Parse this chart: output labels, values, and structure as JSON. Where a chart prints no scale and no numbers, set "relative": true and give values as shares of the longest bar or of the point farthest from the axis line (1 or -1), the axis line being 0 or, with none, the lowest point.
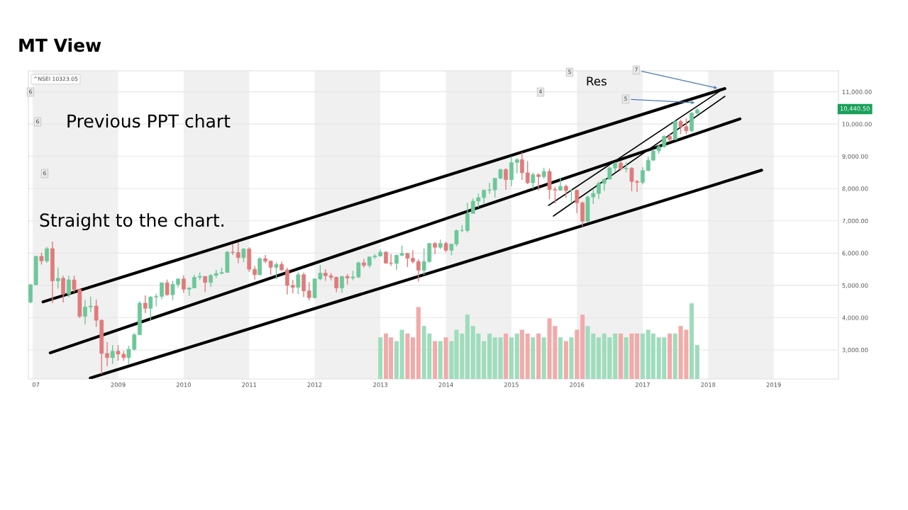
{
  "chart_data": [
    {
      "type": "candlestick",
      "title": "MT View",
      "x": [
        "2007-09",
        "2007-10",
        "2007-11",
        "2007-12",
        "2008-01",
        "2008-02",
        "2008-03",
        "2008-04",
        "2008-05",
        "2008-06",
        "2008-07",
        "2008-08",
        "2008-09",
        "2008-10",
        "2008-11",
        "2008-12",
        "2009-01",
        "2009-02",
        "2009-03",
        "2009-04",
        "2009-05",
        "2009-06",
        "2009-07",
        "2009-08",
        "2009-09",
        "2009-10",
        "2009-11",
        "2009-12",
        "2010-01",
        "2010-02",
        "2010-03",
        "2010-04",
        "2010-05",
        "2010-06",
        "2010-07",
        "2010-08",
        "2010-09",
        "2010-10",
        "2010-11",
        "2010-12",
        "2011-01",
        "2011-02",
        "2011-03",
        "2011-04",
        "2011-05",
        "2011-06",
        "2011-07",
        "2011-08",
        "2011-09",
        "2011-10",
        "2011-11",
        "2011-12",
        "2012-01",
        "2012-02",
        "2012-03",
        "2012-04",
        "2012-05",
        "2012-06",
        "2012-07",
        "2012-08",
        "2012-09",
        "2012-10",
        "2012-11",
        "2012-12",
        "2013-01",
        "2013-02",
        "2013-03",
        "2013-04",
        "2013-05",
        "2013-06",
        "2013-07",
        "2013-08",
        "2013-09",
        "2013-10",
        "2013-11",
        "2013-12",
        "2014-01",
        "2014-02",
        "2014-03",
        "2014-04",
        "2014-05",
        "2014-06",
        "2014-07",
        "2014-08",
        "2014-09",
        "2014-10",
        "2014-11",
        "2014-12",
        "2015-01",
        "2015-02",
        "2015-03",
        "2015-04",
        "2015-05",
        "2015-06",
        "2015-07",
        "2015-08",
        "2015-09",
        "2015-10",
        "2015-11",
        "2015-12",
        "2016-01",
        "2016-02",
        "2016-03",
        "2016-04",
        "2016-05",
        "2016-06",
        "2016-07",
        "2016-08",
        "2016-09",
        "2016-10",
        "2016-11",
        "2016-12",
        "2017-01",
        "2017-02",
        "2017-03",
        "2017-04",
        "2017-05",
        "2017-06",
        "2017-07",
        "2017-08",
        "2017-09",
        "2017-10",
        "2017-11"
      ],
      "ohlc": [
        [
          4480,
          5050,
          4450,
          5020
        ],
        [
          5020,
          5920,
          5000,
          5900
        ],
        [
          5900,
          6010,
          5640,
          5760
        ],
        [
          5760,
          6190,
          5700,
          6140
        ],
        [
          6140,
          6360,
          4450,
          5140
        ],
        [
          5140,
          5550,
          4900,
          5220
        ],
        [
          5220,
          5300,
          4470,
          4730
        ],
        [
          4730,
          5300,
          4630,
          5170
        ],
        [
          5170,
          5300,
          4780,
          4870
        ],
        [
          4870,
          4900,
          3990,
          4040
        ],
        [
          4040,
          4540,
          3790,
          4330
        ],
        [
          4330,
          4650,
          4170,
          4360
        ],
        [
          4360,
          4560,
          3710,
          3920
        ],
        [
          3920,
          3950,
          2250,
          2890
        ],
        [
          2890,
          3240,
          2500,
          2760
        ],
        [
          2760,
          3150,
          2570,
          2960
        ],
        [
          2960,
          3150,
          2660,
          2870
        ],
        [
          2870,
          2970,
          2660,
          2760
        ],
        [
          2760,
          3130,
          2540,
          3020
        ],
        [
          3020,
          3520,
          2970,
          3470
        ],
        [
          3470,
          4510,
          3470,
          4450
        ],
        [
          4450,
          4690,
          4140,
          4290
        ],
        [
          4290,
          4670,
          3920,
          4640
        ],
        [
          4640,
          4740,
          4350,
          4660
        ],
        [
          4660,
          5090,
          4570,
          5080
        ],
        [
          5080,
          5180,
          4680,
          4710
        ],
        [
          4710,
          5140,
          4540,
          5030
        ],
        [
          5030,
          5220,
          4940,
          5200
        ],
        [
          5200,
          5310,
          4770,
          4880
        ],
        [
          4880,
          4940,
          4680,
          4920
        ],
        [
          4920,
          5330,
          4920,
          5250
        ],
        [
          5250,
          5400,
          5160,
          5280
        ],
        [
          5280,
          5280,
          4790,
          5090
        ],
        [
          5090,
          5350,
          4960,
          5310
        ],
        [
          5310,
          5480,
          5230,
          5370
        ],
        [
          5370,
          5550,
          5350,
          5400
        ],
        [
          5400,
          6070,
          5400,
          6030
        ],
        [
          6030,
          6280,
          5940,
          6020
        ],
        [
          6020,
          6340,
          5690,
          5860
        ],
        [
          5860,
          6150,
          5720,
          6130
        ],
        [
          6130,
          6180,
          5420,
          5500
        ],
        [
          5500,
          5600,
          5180,
          5330
        ],
        [
          5330,
          5870,
          5310,
          5830
        ],
        [
          5830,
          5940,
          5690,
          5750
        ],
        [
          5750,
          5780,
          5330,
          5560
        ],
        [
          5560,
          5710,
          5200,
          5650
        ],
        [
          5650,
          5740,
          5450,
          5480
        ],
        [
          5480,
          5550,
          4720,
          5000
        ],
        [
          5000,
          5170,
          4760,
          4940
        ],
        [
          4940,
          5400,
          4730,
          5330
        ],
        [
          5330,
          5400,
          4640,
          4830
        ],
        [
          4830,
          5100,
          4530,
          4620
        ],
        [
          4620,
          5220,
          4590,
          5200
        ],
        [
          5200,
          5630,
          5160,
          5380
        ],
        [
          5380,
          5500,
          5140,
          5300
        ],
        [
          5300,
          5380,
          5150,
          5250
        ],
        [
          5250,
          5280,
          4790,
          4920
        ],
        [
          4920,
          5290,
          4770,
          5280
        ],
        [
          5280,
          5350,
          5030,
          5230
        ],
        [
          5230,
          5450,
          5160,
          5260
        ],
        [
          5260,
          5740,
          5220,
          5700
        ],
        [
          5700,
          5820,
          5550,
          5620
        ],
        [
          5620,
          5890,
          5550,
          5880
        ],
        [
          5880,
          5970,
          5820,
          5910
        ],
        [
          5910,
          6110,
          5890,
          6030
        ],
        [
          6030,
          6060,
          5670,
          5690
        ],
        [
          5690,
          5970,
          5600,
          5680
        ],
        [
          5680,
          5960,
          5480,
          5930
        ],
        [
          5930,
          6230,
          5910,
          5990
        ],
        [
          5990,
          6010,
          5570,
          5840
        ],
        [
          5840,
          6090,
          5680,
          5740
        ],
        [
          5740,
          5810,
          5120,
          5470
        ],
        [
          5470,
          6140,
          5320,
          5740
        ],
        [
          5740,
          6310,
          5700,
          6300
        ],
        [
          6300,
          6340,
          5970,
          6180
        ],
        [
          6180,
          6420,
          6130,
          6300
        ],
        [
          6300,
          6360,
          6030,
          6090
        ],
        [
          6090,
          6280,
          5930,
          6280
        ],
        [
          6280,
          6730,
          6210,
          6700
        ],
        [
          6700,
          6870,
          6650,
          6700
        ],
        [
          6700,
          7560,
          6640,
          7230
        ],
        [
          7230,
          7700,
          7220,
          7610
        ],
        [
          7610,
          7840,
          7420,
          7720
        ],
        [
          7720,
          7970,
          7540,
          7950
        ],
        [
          7950,
          8180,
          7840,
          7960
        ],
        [
          7960,
          8330,
          7720,
          8320
        ],
        [
          8320,
          8620,
          8290,
          8590
        ],
        [
          8590,
          8630,
          7960,
          8280
        ],
        [
          8280,
          8990,
          8070,
          8810
        ],
        [
          8810,
          8940,
          8470,
          8900
        ],
        [
          8900,
          9120,
          8270,
          8490
        ],
        [
          8490,
          8850,
          8140,
          8180
        ],
        [
          8180,
          8490,
          7990,
          8430
        ],
        [
          8430,
          8470,
          7940,
          8370
        ],
        [
          8370,
          8650,
          8310,
          8530
        ],
        [
          8530,
          8620,
          7670,
          7970
        ],
        [
          7970,
          8060,
          7540,
          7950
        ],
        [
          7950,
          8340,
          7930,
          8070
        ],
        [
          8070,
          8120,
          7710,
          7940
        ],
        [
          7940,
          8000,
          7550,
          7950
        ],
        [
          7950,
          7970,
          7240,
          7560
        ],
        [
          7560,
          7600,
          6830,
          6990
        ],
        [
          6990,
          7780,
          6950,
          7740
        ],
        [
          7740,
          7990,
          7520,
          7850
        ],
        [
          7850,
          8220,
          7680,
          8160
        ],
        [
          8160,
          8310,
          7930,
          8290
        ],
        [
          8290,
          8680,
          8290,
          8640
        ],
        [
          8640,
          8820,
          8520,
          8790
        ],
        [
          8790,
          8870,
          8560,
          8610
        ],
        [
          8610,
          8810,
          8510,
          8630
        ],
        [
          8630,
          8670,
          7920,
          8220
        ],
        [
          8220,
          8270,
          7890,
          8190
        ],
        [
          8190,
          8670,
          8130,
          8560
        ],
        [
          8560,
          8980,
          8540,
          8880
        ],
        [
          8880,
          9220,
          8860,
          9170
        ],
        [
          9170,
          9370,
          9080,
          9300
        ],
        [
          9300,
          9650,
          9270,
          9620
        ],
        [
          9620,
          9710,
          9450,
          9520
        ],
        [
          9520,
          10110,
          9500,
          10080
        ],
        [
          10080,
          10140,
          9690,
          9920
        ],
        [
          9920,
          10180,
          9690,
          9790
        ],
        [
          9790,
          10370,
          9750,
          10340
        ],
        [
          10340,
          10490,
          10300,
          10440
        ]
      ],
      "series": [
        {
          "type": "line",
          "color": "#000000",
          "x": [
            "2007-11-10",
            "2018-04-04"
          ],
          "values": [
            4490,
            11100
          ]
        },
        {
          "type": "line",
          "color": "#000000",
          "x": [
            "2007-12-20",
            "2018-06-27"
          ],
          "values": [
            2910,
            10160
          ]
        },
        {
          "type": "line",
          "color": "#000000",
          "x": [
            "2008-07-30",
            "2018-10-26"
          ],
          "values": [
            2130,
            8570
          ]
        },
        {
          "type": "line",
          "color": "#000000",
          "x": [
            "2015-07-27",
            "2018-03-04"
          ],
          "values": [
            7480,
            11010
          ]
        },
        {
          "type": "line",
          "color": "#000000",
          "x": [
            "2015-08-23",
            "2018-04-04"
          ],
          "values": [
            7150,
            10860
          ]
        }
      ],
      "bands": [
        {
          "axis": "x",
          "from": "2007-09-13",
          "to": "2009-01-01",
          "color": "#f0f0f0"
        },
        {
          "axis": "x",
          "from": "2010-01-01",
          "to": "2011-01-01",
          "color": "#f0f0f0"
        },
        {
          "axis": "x",
          "from": "2012-01-01",
          "to": "2013-01-01",
          "color": "#f0f0f0"
        },
        {
          "axis": "x",
          "from": "2014-01-01",
          "to": "2015-01-01",
          "color": "#f0f0f0"
        },
        {
          "axis": "x",
          "from": "2016-01-01",
          "to": "2017-01-01",
          "color": "#f0f0f0"
        },
        {
          "axis": "x",
          "from": "2018-01-01",
          "to": "2019-01-01",
          "color": "#f0f0f0"
        }
      ],
      "xlim": [
        "2007-08-20",
        "2019-12-28"
      ],
      "xticks": [
        {
          "value": "2007-10-01",
          "label": "07"
        },
        {
          "value": "2009-01-01",
          "label": "2009"
        },
        {
          "value": "2010-01-01",
          "label": "2010"
        },
        {
          "value": "2011-01-01",
          "label": "2011"
        },
        {
          "value": "2012-01-01",
          "label": "2012"
        },
        {
          "value": "2013-01-01",
          "label": "2013"
        },
        {
          "value": "2014-01-01",
          "label": "2014"
        },
        {
          "value": "2015-01-01",
          "label": "2015"
        },
        {
          "value": "2016-01-01",
          "label": "2016"
        },
        {
          "value": "2017-01-01",
          "label": "2017"
        },
        {
          "value": "2018-01-01",
          "label": "2018"
        },
        {
          "value": "2019-01-01",
          "label": "2019"
        }
      ],
      "ylim": [
        2100,
        11650
      ],
      "yticks": [
        {
          "value": 3000,
          "label": "3,000.00"
        },
        {
          "value": 4000,
          "label": "4,000.00"
        },
        {
          "value": 5000,
          "label": "5,000.00"
        },
        {
          "value": 6000,
          "label": "6,000.00"
        },
        {
          "value": 7000,
          "label": "7,000.00"
        },
        {
          "value": 8000,
          "label": "8,000.00"
        },
        {
          "value": 9000,
          "label": "9,000.00"
        },
        {
          "value": 10000,
          "label": "10,000.00"
        },
        {
          "value": 11000,
          "label": "11,000.00"
        }
      ],
      "grid": "y",
      "annotations": [
        "^NSEI 10323.05",
        "Previous PPT chart",
        "Straight to the chart.",
        "Res",
        "6",
        "6",
        "6",
        "5",
        "4",
        {
          "text": "7",
          "x": "2018-03-04",
          "y": 11100
        },
        {
          "text": "5",
          "x": "2017-10-29",
          "y": 10660
        },
        "10,440.50"
      ]
    },
    {
      "type": "bar",
      "relative": true,
      "xlim": [
        "2007-08-20",
        "2019-12-28"
      ],
      "x": [
        "2013-01",
        "2013-02",
        "2013-03",
        "2013-04",
        "2013-05",
        "2013-06",
        "2013-07",
        "2013-08",
        "2013-09",
        "2013-10",
        "2013-11",
        "2013-12",
        "2014-01",
        "2014-02",
        "2014-03",
        "2014-04",
        "2014-05",
        "2014-06",
        "2014-07",
        "2014-08",
        "2014-09",
        "2014-10",
        "2014-11",
        "2014-12",
        "2015-01",
        "2015-02",
        "2015-03",
        "2015-04",
        "2015-05",
        "2015-06",
        "2015-07",
        "2015-08",
        "2015-09",
        "2015-10",
        "2015-11",
        "2015-12",
        "2016-01",
        "2016-02",
        "2016-03",
        "2016-04",
        "2016-05",
        "2016-06",
        "2016-07",
        "2016-08",
        "2016-09",
        "2016-10",
        "2016-11",
        "2016-12",
        "2017-01",
        "2017-02",
        "2017-03",
        "2017-04",
        "2017-05",
        "2017-06",
        "2017-07",
        "2017-08",
        "2017-09",
        "2017-10",
        "2017-11"
      ],
      "values": [
        0.55,
        0.6,
        0.55,
        0.5,
        0.65,
        0.6,
        0.55,
        0.95,
        0.7,
        0.6,
        0.5,
        0.5,
        0.55,
        0.5,
        0.65,
        0.6,
        0.85,
        0.7,
        0.6,
        0.5,
        0.6,
        0.55,
        0.55,
        0.6,
        0.55,
        0.6,
        0.65,
        0.6,
        0.55,
        0.6,
        0.55,
        0.8,
        0.7,
        0.55,
        0.5,
        0.55,
        0.65,
        0.85,
        0.7,
        0.6,
        0.55,
        0.6,
        0.55,
        0.6,
        0.6,
        0.55,
        0.6,
        0.6,
        0.6,
        0.65,
        0.6,
        0.55,
        0.55,
        0.6,
        0.6,
        0.7,
        0.65,
        1.0,
        0.45
      ],
      "colors": [
        "#9fdcbc",
        "#f2aaaa",
        "#f2aaaa",
        "#9fdcbc",
        "#9fdcbc",
        "#f2aaaa",
        "#f2aaaa",
        "#f2aaaa",
        "#9fdcbc",
        "#9fdcbc",
        "#f2aaaa",
        "#9fdcbc",
        "#f2aaaa",
        "#9fdcbc",
        "#9fdcbc",
        "#9fdcbc",
        "#9fdcbc",
        "#9fdcbc",
        "#9fdcbc",
        "#9fdcbc",
        "#9fdcbc",
        "#9fdcbc",
        "#9fdcbc",
        "#f2aaaa",
        "#9fdcbc",
        "#9fdcbc",
        "#f2aaaa",
        "#f2aaaa",
        "#9fdcbc",
        "#f2aaaa",
        "#9fdcbc",
        "#f2aaaa",
        "#f2aaaa",
        "#9fdcbc",
        "#f2aaaa",
        "#9fdcbc",
        "#f2aaaa",
        "#f2aaaa",
        "#9fdcbc",
        "#9fdcbc",
        "#9fdcbc",
        "#9fdcbc",
        "#9fdcbc",
        "#9fdcbc",
        "#f2aaaa",
        "#9fdcbc",
        "#f2aaaa",
        "#f2aaaa",
        "#9fdcbc",
        "#9fdcbc",
        "#9fdcbc",
        "#9fdcbc",
        "#9fdcbc",
        "#f2aaaa",
        "#9fdcbc",
        "#f2aaaa",
        "#f2aaaa",
        "#9fdcbc",
        "#9fdcbc"
      ]
    }
  ]
}
